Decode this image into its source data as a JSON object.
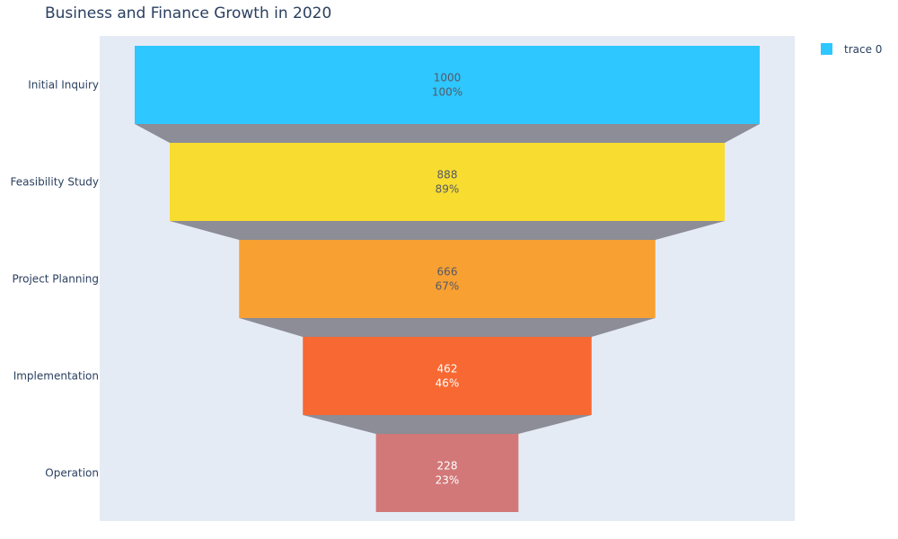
{
  "chart_data": {
    "type": "funnel",
    "title": "Business and Finance Growth in 2020",
    "categories": [
      "Initial Inquiry",
      "Feasibility Study",
      "Project Planning",
      "Implementation",
      "Operation"
    ],
    "values": [
      1000,
      888,
      666,
      462,
      228
    ],
    "percent_labels": [
      "100%",
      "89%",
      "67%",
      "46%",
      "23%"
    ],
    "colors": [
      "#2ec7ff",
      "#f8dc30",
      "#f8a032",
      "#f86832",
      "#d27878"
    ],
    "label_colors": [
      "#555a66",
      "#555a66",
      "#555a66",
      "#ffffff",
      "#ffffff"
    ],
    "connector_color": "#8c8d96",
    "plot_background": "#e5ebf5",
    "legend": {
      "entries": [
        "trace 0"
      ],
      "position": "top-right",
      "swatch_color": "#2ec7ff"
    }
  }
}
